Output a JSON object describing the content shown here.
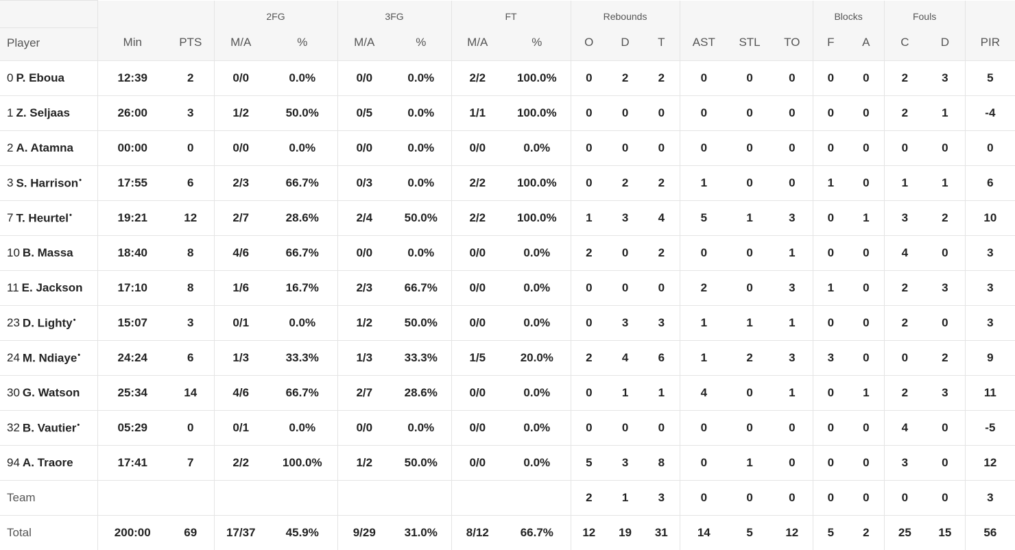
{
  "header": {
    "groups": {
      "fg2": "2FG",
      "fg3": "3FG",
      "ft": "FT",
      "rebounds": "Rebounds",
      "blocks": "Blocks",
      "fouls": "Fouls"
    },
    "columns": {
      "player": "Player",
      "min": "Min",
      "pts": "PTS",
      "fg2_ma": "M/A",
      "fg2_pct": "%",
      "fg3_ma": "M/A",
      "fg3_pct": "%",
      "ft_ma": "M/A",
      "ft_pct": "%",
      "reb_o": "O",
      "reb_d": "D",
      "reb_t": "T",
      "ast": "AST",
      "stl": "STL",
      "to": "TO",
      "blk_f": "F",
      "blk_a": "A",
      "fouls_c": "C",
      "fouls_d": "D",
      "pir": "PIR"
    }
  },
  "rows": [
    {
      "num": "0",
      "name": "P. Eboua",
      "starter": false,
      "min": "12:39",
      "pts": "2",
      "fg2_ma": "0/0",
      "fg2_pct": "0.0%",
      "fg3_ma": "0/0",
      "fg3_pct": "0.0%",
      "ft_ma": "2/2",
      "ft_pct": "100.0%",
      "reb_o": "0",
      "reb_d": "2",
      "reb_t": "2",
      "ast": "0",
      "stl": "0",
      "to": "0",
      "blk_f": "0",
      "blk_a": "0",
      "fouls_c": "2",
      "fouls_d": "3",
      "pir": "5"
    },
    {
      "num": "1",
      "name": "Z. Seljaas",
      "starter": false,
      "min": "26:00",
      "pts": "3",
      "fg2_ma": "1/2",
      "fg2_pct": "50.0%",
      "fg3_ma": "0/5",
      "fg3_pct": "0.0%",
      "ft_ma": "1/1",
      "ft_pct": "100.0%",
      "reb_o": "0",
      "reb_d": "0",
      "reb_t": "0",
      "ast": "0",
      "stl": "0",
      "to": "0",
      "blk_f": "0",
      "blk_a": "0",
      "fouls_c": "2",
      "fouls_d": "1",
      "pir": "-4"
    },
    {
      "num": "2",
      "name": "A. Atamna",
      "starter": false,
      "min": "00:00",
      "pts": "0",
      "fg2_ma": "0/0",
      "fg2_pct": "0.0%",
      "fg3_ma": "0/0",
      "fg3_pct": "0.0%",
      "ft_ma": "0/0",
      "ft_pct": "0.0%",
      "reb_o": "0",
      "reb_d": "0",
      "reb_t": "0",
      "ast": "0",
      "stl": "0",
      "to": "0",
      "blk_f": "0",
      "blk_a": "0",
      "fouls_c": "0",
      "fouls_d": "0",
      "pir": "0"
    },
    {
      "num": "3",
      "name": "S. Harrison",
      "starter": true,
      "min": "17:55",
      "pts": "6",
      "fg2_ma": "2/3",
      "fg2_pct": "66.7%",
      "fg3_ma": "0/3",
      "fg3_pct": "0.0%",
      "ft_ma": "2/2",
      "ft_pct": "100.0%",
      "reb_o": "0",
      "reb_d": "2",
      "reb_t": "2",
      "ast": "1",
      "stl": "0",
      "to": "0",
      "blk_f": "1",
      "blk_a": "0",
      "fouls_c": "1",
      "fouls_d": "1",
      "pir": "6"
    },
    {
      "num": "7",
      "name": "T. Heurtel",
      "starter": true,
      "min": "19:21",
      "pts": "12",
      "fg2_ma": "2/7",
      "fg2_pct": "28.6%",
      "fg3_ma": "2/4",
      "fg3_pct": "50.0%",
      "ft_ma": "2/2",
      "ft_pct": "100.0%",
      "reb_o": "1",
      "reb_d": "3",
      "reb_t": "4",
      "ast": "5",
      "stl": "1",
      "to": "3",
      "blk_f": "0",
      "blk_a": "1",
      "fouls_c": "3",
      "fouls_d": "2",
      "pir": "10"
    },
    {
      "num": "10",
      "name": "B. Massa",
      "starter": false,
      "min": "18:40",
      "pts": "8",
      "fg2_ma": "4/6",
      "fg2_pct": "66.7%",
      "fg3_ma": "0/0",
      "fg3_pct": "0.0%",
      "ft_ma": "0/0",
      "ft_pct": "0.0%",
      "reb_o": "2",
      "reb_d": "0",
      "reb_t": "2",
      "ast": "0",
      "stl": "0",
      "to": "1",
      "blk_f": "0",
      "blk_a": "0",
      "fouls_c": "4",
      "fouls_d": "0",
      "pir": "3"
    },
    {
      "num": "11",
      "name": "E. Jackson",
      "starter": false,
      "min": "17:10",
      "pts": "8",
      "fg2_ma": "1/6",
      "fg2_pct": "16.7%",
      "fg3_ma": "2/3",
      "fg3_pct": "66.7%",
      "ft_ma": "0/0",
      "ft_pct": "0.0%",
      "reb_o": "0",
      "reb_d": "0",
      "reb_t": "0",
      "ast": "2",
      "stl": "0",
      "to": "3",
      "blk_f": "1",
      "blk_a": "0",
      "fouls_c": "2",
      "fouls_d": "3",
      "pir": "3"
    },
    {
      "num": "23",
      "name": "D. Lighty",
      "starter": true,
      "min": "15:07",
      "pts": "3",
      "fg2_ma": "0/1",
      "fg2_pct": "0.0%",
      "fg3_ma": "1/2",
      "fg3_pct": "50.0%",
      "ft_ma": "0/0",
      "ft_pct": "0.0%",
      "reb_o": "0",
      "reb_d": "3",
      "reb_t": "3",
      "ast": "1",
      "stl": "1",
      "to": "1",
      "blk_f": "0",
      "blk_a": "0",
      "fouls_c": "2",
      "fouls_d": "0",
      "pir": "3"
    },
    {
      "num": "24",
      "name": "M. Ndiaye",
      "starter": true,
      "min": "24:24",
      "pts": "6",
      "fg2_ma": "1/3",
      "fg2_pct": "33.3%",
      "fg3_ma": "1/3",
      "fg3_pct": "33.3%",
      "ft_ma": "1/5",
      "ft_pct": "20.0%",
      "reb_o": "2",
      "reb_d": "4",
      "reb_t": "6",
      "ast": "1",
      "stl": "2",
      "to": "3",
      "blk_f": "3",
      "blk_a": "0",
      "fouls_c": "0",
      "fouls_d": "2",
      "pir": "9"
    },
    {
      "num": "30",
      "name": "G. Watson",
      "starter": false,
      "min": "25:34",
      "pts": "14",
      "fg2_ma": "4/6",
      "fg2_pct": "66.7%",
      "fg3_ma": "2/7",
      "fg3_pct": "28.6%",
      "ft_ma": "0/0",
      "ft_pct": "0.0%",
      "reb_o": "0",
      "reb_d": "1",
      "reb_t": "1",
      "ast": "4",
      "stl": "0",
      "to": "1",
      "blk_f": "0",
      "blk_a": "1",
      "fouls_c": "2",
      "fouls_d": "3",
      "pir": "11"
    },
    {
      "num": "32",
      "name": "B. Vautier",
      "starter": true,
      "min": "05:29",
      "pts": "0",
      "fg2_ma": "0/1",
      "fg2_pct": "0.0%",
      "fg3_ma": "0/0",
      "fg3_pct": "0.0%",
      "ft_ma": "0/0",
      "ft_pct": "0.0%",
      "reb_o": "0",
      "reb_d": "0",
      "reb_t": "0",
      "ast": "0",
      "stl": "0",
      "to": "0",
      "blk_f": "0",
      "blk_a": "0",
      "fouls_c": "4",
      "fouls_d": "0",
      "pir": "-5"
    },
    {
      "num": "94",
      "name": "A. Traore",
      "starter": false,
      "min": "17:41",
      "pts": "7",
      "fg2_ma": "2/2",
      "fg2_pct": "100.0%",
      "fg3_ma": "1/2",
      "fg3_pct": "50.0%",
      "ft_ma": "0/0",
      "ft_pct": "0.0%",
      "reb_o": "5",
      "reb_d": "3",
      "reb_t": "8",
      "ast": "0",
      "stl": "1",
      "to": "0",
      "blk_f": "0",
      "blk_a": "0",
      "fouls_c": "3",
      "fouls_d": "0",
      "pir": "12"
    }
  ],
  "team_row": {
    "label": "Team",
    "min": "",
    "pts": "",
    "fg2_ma": "",
    "fg2_pct": "",
    "fg3_ma": "",
    "fg3_pct": "",
    "ft_ma": "",
    "ft_pct": "",
    "reb_o": "2",
    "reb_d": "1",
    "reb_t": "3",
    "ast": "0",
    "stl": "0",
    "to": "0",
    "blk_f": "0",
    "blk_a": "0",
    "fouls_c": "0",
    "fouls_d": "0",
    "pir": "3"
  },
  "total_row": {
    "label": "Total",
    "min": "200:00",
    "pts": "69",
    "fg2_ma": "17/37",
    "fg2_pct": "45.9%",
    "fg3_ma": "9/29",
    "fg3_pct": "31.0%",
    "ft_ma": "8/12",
    "ft_pct": "66.7%",
    "reb_o": "12",
    "reb_d": "19",
    "reb_t": "31",
    "ast": "14",
    "stl": "5",
    "to": "12",
    "blk_f": "5",
    "blk_a": "2",
    "fouls_c": "25",
    "fouls_d": "15",
    "pir": "56"
  },
  "starter_marker": "•"
}
